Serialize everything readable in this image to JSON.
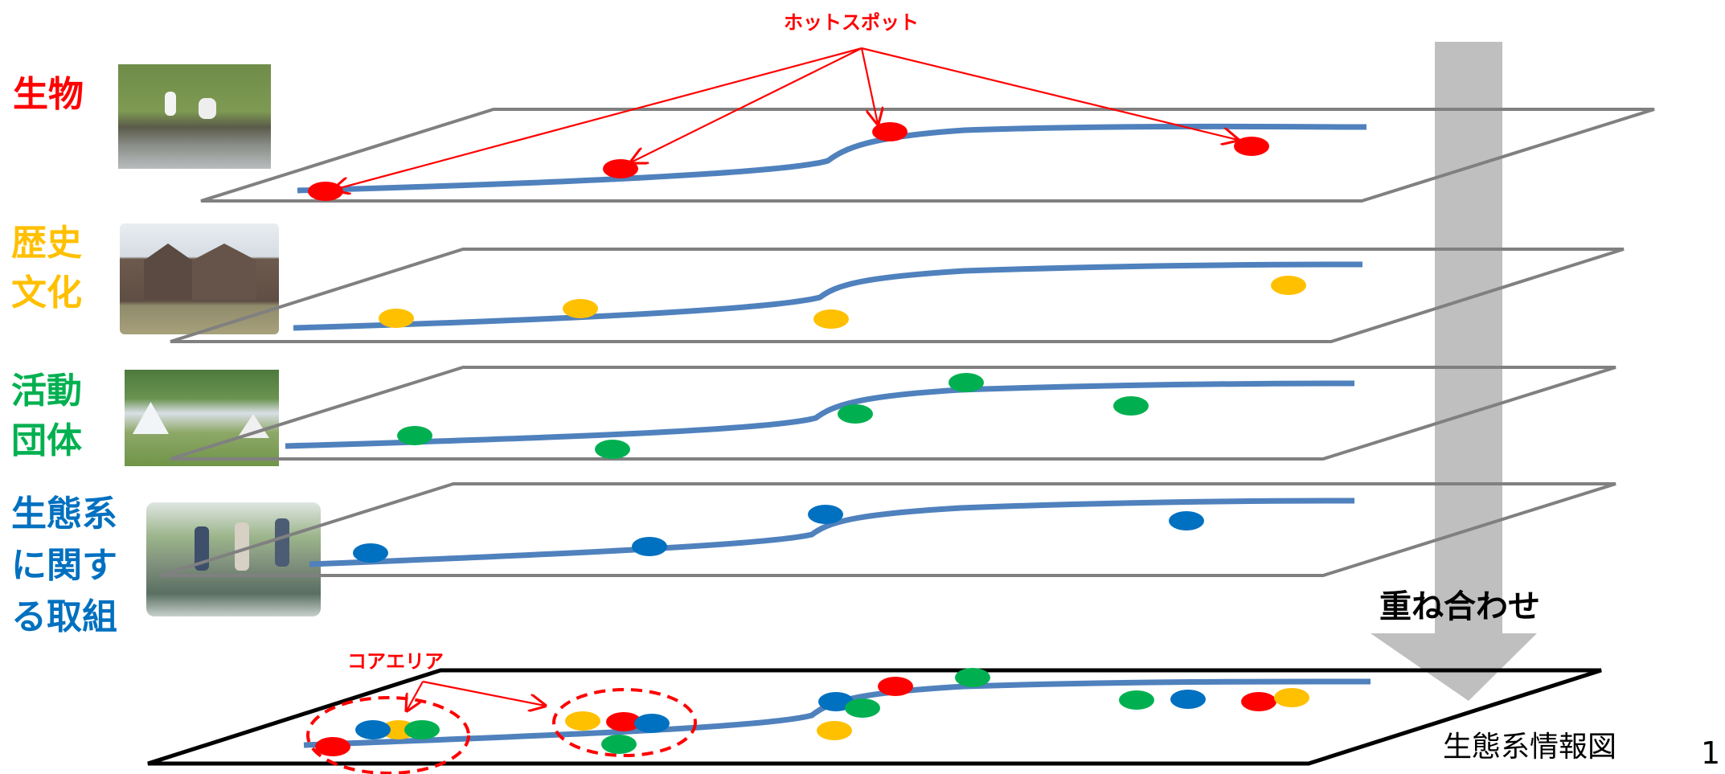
{
  "title_top": "ホットスポット",
  "core_area_label": "コアエリア",
  "overlay_label": "重ね合わせ",
  "result_label": "生態系情報図",
  "page_number": "1",
  "layers": [
    {
      "id": "organisms",
      "label": "生物",
      "color": "#ff0000",
      "photo_icon": "stork-photo"
    },
    {
      "id": "history",
      "label": "歴史\n文化",
      "color": "#ffc000",
      "photo_icon": "brick-building-photo"
    },
    {
      "id": "groups",
      "label": "活動\n団体",
      "color": "#00b050",
      "photo_icon": "event-tents-photo"
    },
    {
      "id": "ecosystem",
      "label": "生態系\nに関す\nる取組",
      "color": "#0070c0",
      "photo_icon": "people-in-stream-photo"
    }
  ],
  "colors": {
    "river": "#4f81bd",
    "plane_gray": "#808080",
    "plane_black": "#000000",
    "arrow": "#bfbfbf",
    "annotation": "#ff0000"
  }
}
